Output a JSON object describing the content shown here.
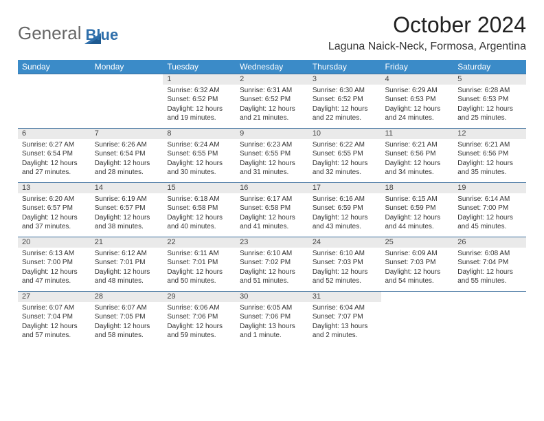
{
  "brand": {
    "part1": "General",
    "part2": "Blue"
  },
  "title": "October 2024",
  "location": "Laguna Naick-Neck, Formosa, Argentina",
  "colors": {
    "header_bg": "#3b8bc8",
    "header_text": "#ffffff",
    "daynum_bg": "#eaeaea",
    "row_border": "#3b6e9c",
    "logo_accent": "#2f6fab"
  },
  "day_headers": [
    "Sunday",
    "Monday",
    "Tuesday",
    "Wednesday",
    "Thursday",
    "Friday",
    "Saturday"
  ],
  "weeks": [
    [
      null,
      null,
      {
        "n": "1",
        "sr": "6:32 AM",
        "ss": "6:52 PM",
        "dl": "12 hours and 19 minutes."
      },
      {
        "n": "2",
        "sr": "6:31 AM",
        "ss": "6:52 PM",
        "dl": "12 hours and 21 minutes."
      },
      {
        "n": "3",
        "sr": "6:30 AM",
        "ss": "6:52 PM",
        "dl": "12 hours and 22 minutes."
      },
      {
        "n": "4",
        "sr": "6:29 AM",
        "ss": "6:53 PM",
        "dl": "12 hours and 24 minutes."
      },
      {
        "n": "5",
        "sr": "6:28 AM",
        "ss": "6:53 PM",
        "dl": "12 hours and 25 minutes."
      }
    ],
    [
      {
        "n": "6",
        "sr": "6:27 AM",
        "ss": "6:54 PM",
        "dl": "12 hours and 27 minutes."
      },
      {
        "n": "7",
        "sr": "6:26 AM",
        "ss": "6:54 PM",
        "dl": "12 hours and 28 minutes."
      },
      {
        "n": "8",
        "sr": "6:24 AM",
        "ss": "6:55 PM",
        "dl": "12 hours and 30 minutes."
      },
      {
        "n": "9",
        "sr": "6:23 AM",
        "ss": "6:55 PM",
        "dl": "12 hours and 31 minutes."
      },
      {
        "n": "10",
        "sr": "6:22 AM",
        "ss": "6:55 PM",
        "dl": "12 hours and 32 minutes."
      },
      {
        "n": "11",
        "sr": "6:21 AM",
        "ss": "6:56 PM",
        "dl": "12 hours and 34 minutes."
      },
      {
        "n": "12",
        "sr": "6:21 AM",
        "ss": "6:56 PM",
        "dl": "12 hours and 35 minutes."
      }
    ],
    [
      {
        "n": "13",
        "sr": "6:20 AM",
        "ss": "6:57 PM",
        "dl": "12 hours and 37 minutes."
      },
      {
        "n": "14",
        "sr": "6:19 AM",
        "ss": "6:57 PM",
        "dl": "12 hours and 38 minutes."
      },
      {
        "n": "15",
        "sr": "6:18 AM",
        "ss": "6:58 PM",
        "dl": "12 hours and 40 minutes."
      },
      {
        "n": "16",
        "sr": "6:17 AM",
        "ss": "6:58 PM",
        "dl": "12 hours and 41 minutes."
      },
      {
        "n": "17",
        "sr": "6:16 AM",
        "ss": "6:59 PM",
        "dl": "12 hours and 43 minutes."
      },
      {
        "n": "18",
        "sr": "6:15 AM",
        "ss": "6:59 PM",
        "dl": "12 hours and 44 minutes."
      },
      {
        "n": "19",
        "sr": "6:14 AM",
        "ss": "7:00 PM",
        "dl": "12 hours and 45 minutes."
      }
    ],
    [
      {
        "n": "20",
        "sr": "6:13 AM",
        "ss": "7:00 PM",
        "dl": "12 hours and 47 minutes."
      },
      {
        "n": "21",
        "sr": "6:12 AM",
        "ss": "7:01 PM",
        "dl": "12 hours and 48 minutes."
      },
      {
        "n": "22",
        "sr": "6:11 AM",
        "ss": "7:01 PM",
        "dl": "12 hours and 50 minutes."
      },
      {
        "n": "23",
        "sr": "6:10 AM",
        "ss": "7:02 PM",
        "dl": "12 hours and 51 minutes."
      },
      {
        "n": "24",
        "sr": "6:10 AM",
        "ss": "7:03 PM",
        "dl": "12 hours and 52 minutes."
      },
      {
        "n": "25",
        "sr": "6:09 AM",
        "ss": "7:03 PM",
        "dl": "12 hours and 54 minutes."
      },
      {
        "n": "26",
        "sr": "6:08 AM",
        "ss": "7:04 PM",
        "dl": "12 hours and 55 minutes."
      }
    ],
    [
      {
        "n": "27",
        "sr": "6:07 AM",
        "ss": "7:04 PM",
        "dl": "12 hours and 57 minutes."
      },
      {
        "n": "28",
        "sr": "6:07 AM",
        "ss": "7:05 PM",
        "dl": "12 hours and 58 minutes."
      },
      {
        "n": "29",
        "sr": "6:06 AM",
        "ss": "7:06 PM",
        "dl": "12 hours and 59 minutes."
      },
      {
        "n": "30",
        "sr": "6:05 AM",
        "ss": "7:06 PM",
        "dl": "13 hours and 1 minute."
      },
      {
        "n": "31",
        "sr": "6:04 AM",
        "ss": "7:07 PM",
        "dl": "13 hours and 2 minutes."
      },
      null,
      null
    ]
  ],
  "labels": {
    "sunrise": "Sunrise:",
    "sunset": "Sunset:",
    "daylight": "Daylight:"
  }
}
